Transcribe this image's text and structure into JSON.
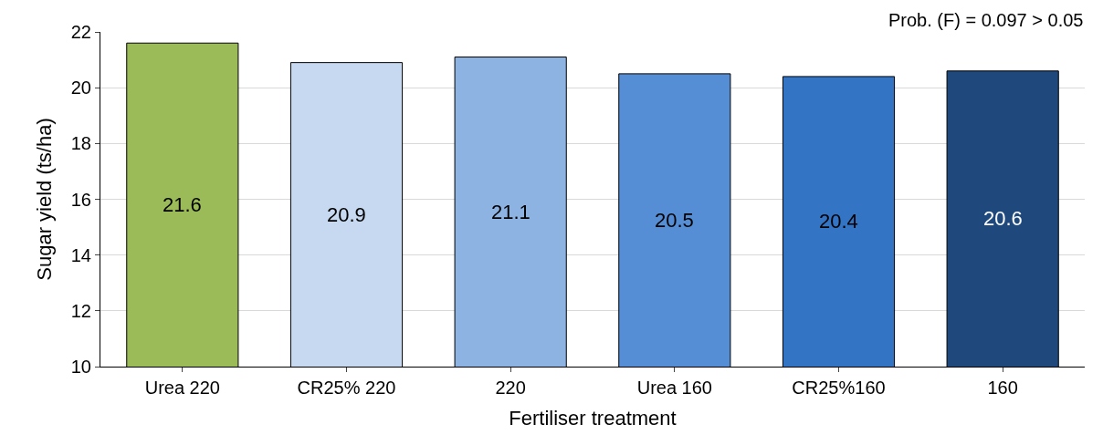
{
  "chart_data": {
    "type": "bar",
    "xlabel": "Fertiliser treatment",
    "ylabel": "Sugar yield (ts/ha)",
    "categories": [
      "Urea 220",
      "CR25% 220",
      "220",
      "Urea 160",
      "CR25%160",
      "160"
    ],
    "values": [
      21.6,
      20.9,
      21.1,
      20.5,
      20.4,
      20.6
    ],
    "colors": [
      "#9bbb59",
      "#c6d9f0",
      "#8db3e2",
      "#558ed5",
      "#3374c4",
      "#1f497d"
    ],
    "ylim": [
      10,
      22
    ],
    "yticks": [
      10,
      12,
      14,
      16,
      18,
      20,
      22
    ],
    "grid": "y",
    "data_labels": true,
    "annotations": [
      "Prob. (F) = 0.097 > 0.05"
    ]
  }
}
